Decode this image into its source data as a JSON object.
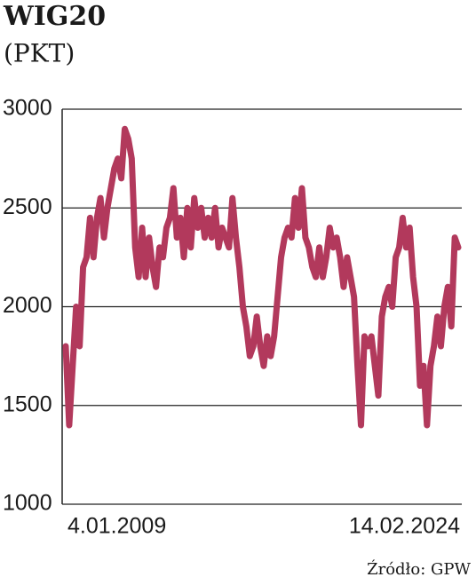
{
  "chart_data": {
    "type": "line",
    "title": "WIG20",
    "subtitle": "(PKT)",
    "source": "Źródło: GPW",
    "categories": [
      "4.01.2009",
      null,
      null,
      null,
      null,
      null,
      null,
      null,
      null,
      null,
      null,
      null,
      null,
      null,
      null,
      null,
      null,
      null,
      null,
      null,
      null,
      null,
      null,
      null,
      null,
      null,
      null,
      null,
      null,
      null,
      null,
      null,
      null,
      null,
      null,
      null,
      null,
      null,
      null,
      null,
      null,
      null,
      null,
      null,
      null,
      null,
      null,
      null,
      null,
      null,
      null,
      null,
      null,
      null,
      null,
      null,
      null,
      null,
      null,
      null,
      null,
      null,
      null,
      null,
      null,
      null,
      null,
      null,
      null,
      null,
      null,
      null,
      null,
      null,
      null,
      null,
      null,
      null,
      null,
      null,
      null,
      null,
      null,
      null,
      null,
      null,
      null,
      null,
      null,
      null,
      null,
      null,
      null,
      null,
      null,
      null,
      null,
      null,
      null,
      null,
      null,
      null,
      null,
      null,
      null,
      null,
      null,
      null,
      null,
      null,
      null,
      null,
      null,
      "14.02.2024"
    ],
    "series": [
      {
        "color": "#b2395c",
        "values": [
          1800,
          1400,
          1700,
          2000,
          1800,
          2200,
          2250,
          2450,
          2250,
          2450,
          2550,
          2350,
          2500,
          2600,
          2700,
          2750,
          2650,
          2900,
          2850,
          2750,
          2300,
          2150,
          2400,
          2150,
          2350,
          2200,
          2100,
          2300,
          2250,
          2400,
          2450,
          2600,
          2350,
          2450,
          2250,
          2500,
          2300,
          2550,
          2400,
          2500,
          2350,
          2450,
          2350,
          2500,
          2300,
          2400,
          2350,
          2300,
          2550,
          2350,
          2200,
          2000,
          1900,
          1750,
          1800,
          1950,
          1800,
          1700,
          1850,
          1750,
          1850,
          2050,
          2250,
          2350,
          2400,
          2350,
          2550,
          2400,
          2600,
          2350,
          2300,
          2200,
          2150,
          2300,
          2150,
          2250,
          2400,
          2300,
          2350,
          2250,
          2100,
          2250,
          2150,
          2050,
          1700,
          1400,
          1850,
          1800,
          1850,
          1700,
          1550,
          1950,
          2050,
          2100,
          2000,
          2250,
          2300,
          2450,
          2300,
          2400,
          2150,
          2000,
          1600,
          1700,
          1400,
          1700,
          1800,
          1950,
          1800,
          2000,
          2100,
          1900,
          2350,
          2300
        ]
      }
    ],
    "ylim": [
      1000,
      3000
    ],
    "yticks": [
      1000,
      1500,
      2000,
      2500,
      3000
    ],
    "grid": true
  }
}
